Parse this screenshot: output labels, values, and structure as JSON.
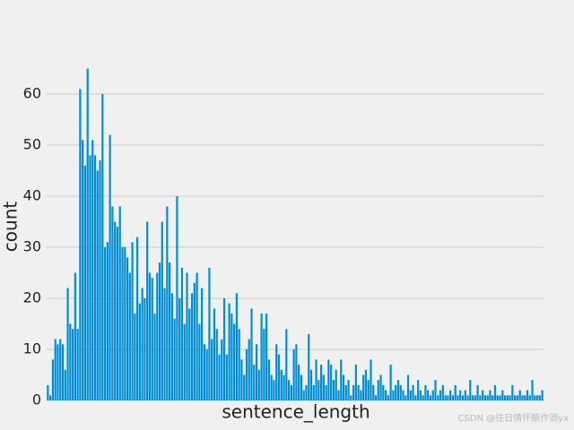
{
  "chart_data": {
    "type": "bar",
    "x_label": "sentence_length",
    "y_label": "count",
    "watermark": "CSDN @往日情怀酿作酒yx",
    "color": "#008fd5",
    "grid": true,
    "ylim": [
      0,
      68.25
    ],
    "yticks": [
      0,
      10,
      20,
      30,
      40,
      50,
      60
    ],
    "categories": [
      null,
      null,
      null,
      null,
      null,
      null,
      null,
      null,
      null,
      null,
      null,
      null,
      null,
      null,
      null,
      null,
      null,
      null,
      null,
      null,
      null,
      null,
      null,
      null,
      null,
      null,
      null,
      null,
      null,
      null,
      null,
      null,
      null,
      null,
      null,
      null,
      null,
      null,
      null,
      null,
      null,
      null,
      null,
      null,
      null,
      null,
      null,
      null,
      null,
      null,
      null,
      null,
      null,
      null,
      null,
      null,
      null,
      null,
      null,
      null,
      null,
      null,
      null,
      null,
      null,
      null,
      null,
      null,
      null,
      null,
      null,
      null,
      null,
      null,
      null,
      null,
      null,
      null,
      null,
      null,
      null,
      null,
      null,
      null,
      null,
      null,
      null,
      null,
      null,
      null,
      null,
      null,
      null,
      null,
      null,
      null,
      null,
      null,
      null,
      null,
      null,
      null,
      null,
      null,
      null,
      null,
      null,
      null,
      null,
      null,
      null,
      null,
      null,
      null,
      null,
      null,
      null,
      null,
      null,
      null,
      null,
      null,
      null,
      null,
      null,
      null,
      null,
      null,
      null,
      null,
      null,
      null,
      null,
      null,
      null,
      null,
      null,
      null,
      null,
      null,
      null,
      null,
      null,
      null,
      null,
      null,
      null,
      null,
      null,
      null,
      null,
      null,
      null,
      null,
      null,
      null,
      null,
      null,
      null,
      null,
      null,
      null,
      null,
      null,
      null,
      null,
      null,
      null,
      null,
      null,
      null,
      null,
      null,
      null,
      null,
      null,
      null,
      null,
      null,
      null,
      null,
      null,
      null,
      null,
      null,
      null,
      null,
      null,
      null,
      null,
      null,
      null,
      null,
      null,
      null,
      null,
      null,
      null,
      null,
      null
    ],
    "values": [
      3,
      1,
      8,
      12,
      11,
      12,
      11,
      6,
      22,
      15,
      14,
      25,
      14,
      61,
      51,
      46,
      65,
      48,
      51,
      48,
      45,
      47,
      60,
      30,
      31,
      52,
      38,
      35,
      34,
      38,
      30,
      30,
      28,
      25,
      31,
      17,
      32,
      19,
      22,
      20,
      35,
      25,
      24,
      17,
      25,
      27,
      35,
      22,
      38,
      27,
      21,
      16,
      40,
      20,
      26,
      15,
      25,
      18,
      21,
      23,
      25,
      15,
      22,
      11,
      10,
      26,
      12,
      18,
      14,
      9,
      12,
      20,
      9,
      19,
      17,
      15,
      21,
      14,
      8,
      5,
      10,
      12,
      18,
      7,
      11,
      6,
      17,
      14,
      17,
      8,
      5,
      4,
      11,
      9,
      6,
      5,
      14,
      4,
      3,
      10,
      11,
      7,
      5,
      2,
      3,
      13,
      6,
      3,
      8,
      4,
      7,
      5,
      3,
      8,
      7,
      4,
      6,
      2,
      8,
      5,
      3,
      4,
      1,
      3,
      7,
      3,
      2,
      5,
      6,
      4,
      8,
      3,
      1,
      4,
      5,
      3,
      2,
      1,
      7,
      2,
      3,
      4,
      3,
      2,
      1,
      5,
      2,
      3,
      1,
      4,
      2,
      1,
      3,
      2,
      1,
      2,
      4,
      1,
      2,
      3,
      1,
      1,
      2,
      1,
      3,
      1,
      2,
      1,
      2,
      1,
      4,
      1,
      1,
      3,
      1,
      2,
      1,
      1,
      2,
      1,
      3,
      1,
      1,
      2,
      1,
      1,
      1,
      3,
      1,
      1,
      2,
      1,
      1,
      2,
      1,
      4,
      1,
      1,
      1,
      2
    ]
  }
}
